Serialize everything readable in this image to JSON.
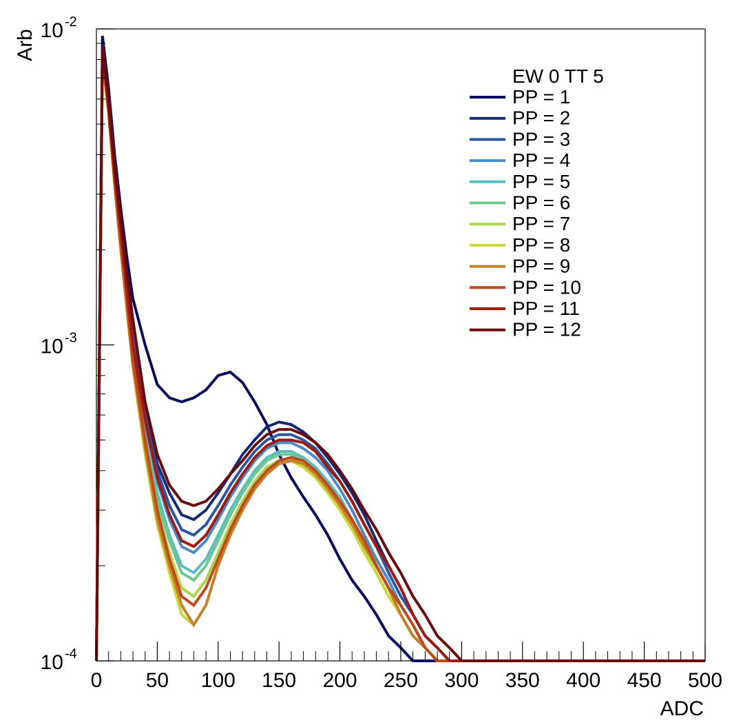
{
  "chart_data": {
    "type": "line",
    "title": "",
    "xlabel": "ADC",
    "ylabel": "Arb",
    "xlim": [
      0,
      500
    ],
    "ylim": [
      0.0001,
      0.01
    ],
    "yscale": "log",
    "grid": false,
    "legend_title": "EW 0 TT 5",
    "legend_position": "top-right",
    "x_ticks": [
      "0",
      "50",
      "100",
      "150",
      "200",
      "250",
      "300",
      "350",
      "400",
      "450",
      "500"
    ],
    "y_tick_base": [
      "10",
      "10",
      "10"
    ],
    "y_tick_exp": [
      "-4",
      "-3",
      "-2"
    ],
    "x": [
      0,
      5,
      10,
      15,
      20,
      25,
      30,
      40,
      50,
      60,
      70,
      80,
      90,
      100,
      110,
      120,
      130,
      140,
      150,
      160,
      170,
      180,
      190,
      200,
      210,
      220,
      230,
      240,
      250,
      260,
      270,
      280,
      290,
      300,
      310,
      320,
      330,
      340,
      350,
      400,
      450,
      500
    ],
    "series": [
      {
        "name": "PP = 1",
        "color": "#0a0a5e",
        "values": [
          0.0001,
          0.0095,
          0.0065,
          0.004,
          0.0027,
          0.0019,
          0.0014,
          0.001,
          0.00075,
          0.00068,
          0.00066,
          0.00068,
          0.00072,
          0.0008,
          0.00082,
          0.00076,
          0.00066,
          0.00056,
          0.00045,
          0.00038,
          0.00033,
          0.00029,
          0.00025,
          0.00021,
          0.00018,
          0.00016,
          0.00014,
          0.00012,
          0.00011,
          0.0001,
          0.0001,
          0.0001,
          0.0001,
          0.0001,
          0.0001,
          0.0001,
          0.0001,
          0.0001,
          0.0001,
          0.0001,
          0.0001,
          0.0001
        ]
      },
      {
        "name": "PP = 2",
        "color": "#142878",
        "values": [
          0.0001,
          0.009,
          0.0062,
          0.0038,
          0.0025,
          0.0017,
          0.0012,
          0.00065,
          0.00042,
          0.00034,
          0.00029,
          0.00028,
          0.0003,
          0.00034,
          0.00039,
          0.00045,
          0.0005,
          0.00055,
          0.00057,
          0.00056,
          0.00053,
          0.00049,
          0.00044,
          0.00039,
          0.00034,
          0.00029,
          0.00024,
          0.0002,
          0.00017,
          0.00014,
          0.00012,
          0.00011,
          0.0001,
          0.0001,
          0.0001,
          0.0001,
          0.0001,
          0.0001,
          0.0001,
          0.0001,
          0.0001,
          0.0001
        ]
      },
      {
        "name": "PP = 3",
        "color": "#2b56a8",
        "values": [
          0.0001,
          0.0088,
          0.006,
          0.0036,
          0.0024,
          0.0016,
          0.0011,
          0.0006,
          0.0004,
          0.00031,
          0.00026,
          0.00025,
          0.00027,
          0.00031,
          0.00036,
          0.00041,
          0.00046,
          0.0005,
          0.00052,
          0.00052,
          0.0005,
          0.00047,
          0.00042,
          0.00037,
          0.00032,
          0.00027,
          0.00023,
          0.00019,
          0.00016,
          0.00014,
          0.00012,
          0.00011,
          0.0001,
          0.0001,
          0.0001,
          0.0001,
          0.0001,
          0.0001,
          0.0001,
          0.0001,
          0.0001,
          0.0001
        ]
      },
      {
        "name": "PP = 4",
        "color": "#4a8ac8",
        "values": [
          0.0001,
          0.0086,
          0.0058,
          0.0035,
          0.0023,
          0.0015,
          0.001,
          0.00056,
          0.00037,
          0.00028,
          0.00023,
          0.00022,
          0.00024,
          0.00028,
          0.00033,
          0.00038,
          0.00043,
          0.00047,
          0.00049,
          0.00049,
          0.00047,
          0.00044,
          0.0004,
          0.00035,
          0.0003,
          0.00025,
          0.00021,
          0.00018,
          0.00015,
          0.00013,
          0.00011,
          0.0001,
          0.0001,
          0.0001,
          0.0001,
          0.0001,
          0.0001,
          0.0001,
          0.0001,
          0.0001,
          0.0001,
          0.0001
        ]
      },
      {
        "name": "PP = 5",
        "color": "#5bbcc4",
        "values": [
          0.0001,
          0.0085,
          0.0057,
          0.0034,
          0.0022,
          0.0014,
          0.00095,
          0.00052,
          0.00034,
          0.00025,
          0.0002,
          0.00019,
          0.00021,
          0.00025,
          0.0003,
          0.00035,
          0.0004,
          0.00044,
          0.00046,
          0.00046,
          0.00044,
          0.00041,
          0.00037,
          0.00033,
          0.00028,
          0.00024,
          0.0002,
          0.00017,
          0.00014,
          0.00012,
          0.00011,
          0.0001,
          0.0001,
          0.0001,
          0.0001,
          0.0001,
          0.0001,
          0.0001,
          0.0001,
          0.0001,
          0.0001,
          0.0001
        ]
      },
      {
        "name": "PP = 6",
        "color": "#6cc98a",
        "values": [
          0.0001,
          0.0084,
          0.0056,
          0.0033,
          0.0021,
          0.0014,
          0.0009,
          0.0005,
          0.00032,
          0.00024,
          0.00019,
          0.00018,
          0.0002,
          0.00024,
          0.00029,
          0.00034,
          0.00039,
          0.00043,
          0.00045,
          0.00045,
          0.00043,
          0.0004,
          0.00036,
          0.00032,
          0.00027,
          0.00023,
          0.0002,
          0.00017,
          0.00014,
          0.00012,
          0.00011,
          0.0001,
          0.0001,
          0.0001,
          0.0001,
          0.0001,
          0.0001,
          0.0001,
          0.0001,
          0.0001,
          0.0001,
          0.0001
        ]
      },
      {
        "name": "PP = 7",
        "color": "#a8d84a",
        "values": [
          0.0001,
          0.0083,
          0.0055,
          0.0033,
          0.0021,
          0.0013,
          0.00088,
          0.00048,
          0.0003,
          0.00022,
          0.00017,
          0.00016,
          0.00018,
          0.00022,
          0.00027,
          0.00032,
          0.00037,
          0.00041,
          0.00043,
          0.00044,
          0.00042,
          0.00039,
          0.00035,
          0.00031,
          0.00027,
          0.00023,
          0.00019,
          0.00016,
          0.00014,
          0.00012,
          0.00011,
          0.0001,
          0.0001,
          0.0001,
          0.0001,
          0.0001,
          0.0001,
          0.0001,
          0.0001,
          0.0001,
          0.0001,
          0.0001
        ]
      },
      {
        "name": "PP = 8",
        "color": "#ccd83a",
        "values": [
          0.0001,
          0.0082,
          0.0054,
          0.0032,
          0.002,
          0.0013,
          0.00085,
          0.00045,
          0.00027,
          0.00019,
          0.00014,
          0.00013,
          0.00015,
          0.0002,
          0.00025,
          0.0003,
          0.00035,
          0.00039,
          0.00042,
          0.00043,
          0.00041,
          0.00038,
          0.00034,
          0.0003,
          0.00026,
          0.00022,
          0.00019,
          0.00016,
          0.00014,
          0.00012,
          0.00011,
          0.0001,
          0.0001,
          0.0001,
          0.0001,
          0.0001,
          0.0001,
          0.0001,
          0.0001,
          0.0001,
          0.0001,
          0.0001
        ]
      },
      {
        "name": "PP = 9",
        "color": "#c8802a",
        "values": [
          0.0001,
          0.0082,
          0.0054,
          0.0032,
          0.002,
          0.0013,
          0.00086,
          0.00047,
          0.00028,
          0.0002,
          0.00015,
          0.00013,
          0.00015,
          0.0002,
          0.00025,
          0.0003,
          0.00035,
          0.00039,
          0.00042,
          0.00043,
          0.00042,
          0.00039,
          0.00035,
          0.00031,
          0.00027,
          0.00023,
          0.0002,
          0.00017,
          0.00014,
          0.00012,
          0.00011,
          0.0001,
          0.0001,
          0.0001,
          0.0001,
          0.0001,
          0.0001,
          0.0001,
          0.0001,
          0.0001,
          0.0001,
          0.0001
        ]
      },
      {
        "name": "PP = 10",
        "color": "#c04a1a",
        "values": [
          0.0001,
          0.0083,
          0.0055,
          0.0033,
          0.0021,
          0.0014,
          0.0009,
          0.0005,
          0.0003,
          0.00021,
          0.00016,
          0.00015,
          0.00017,
          0.00021,
          0.00026,
          0.00031,
          0.00036,
          0.0004,
          0.00043,
          0.00044,
          0.00043,
          0.0004,
          0.00036,
          0.00032,
          0.00028,
          0.00024,
          0.0002,
          0.00017,
          0.00015,
          0.00013,
          0.00011,
          0.0001,
          0.0001,
          0.0001,
          0.0001,
          0.0001,
          0.0001,
          0.0001,
          0.0001,
          0.0001,
          0.0001,
          0.0001
        ]
      },
      {
        "name": "PP = 11",
        "color": "#a01a10",
        "values": [
          0.0001,
          0.0085,
          0.0057,
          0.0035,
          0.0023,
          0.0015,
          0.001,
          0.00058,
          0.00038,
          0.00029,
          0.00024,
          0.00023,
          0.00025,
          0.00029,
          0.00034,
          0.00039,
          0.00044,
          0.00048,
          0.0005,
          0.0005,
          0.00049,
          0.00046,
          0.00041,
          0.00037,
          0.00032,
          0.00027,
          0.00023,
          0.0002,
          0.00017,
          0.00014,
          0.00012,
          0.00011,
          0.0001,
          0.0001,
          0.0001,
          0.0001,
          0.0001,
          0.0001,
          0.0001,
          0.0001,
          0.0001,
          0.0001
        ]
      },
      {
        "name": "PP = 12",
        "color": "#6a0a0a",
        "values": [
          0.0001,
          0.0088,
          0.006,
          0.0037,
          0.0025,
          0.0017,
          0.0012,
          0.00066,
          0.00045,
          0.00036,
          0.00032,
          0.00031,
          0.00032,
          0.00035,
          0.00039,
          0.00043,
          0.00048,
          0.00052,
          0.00054,
          0.00054,
          0.00052,
          0.00049,
          0.00045,
          0.0004,
          0.00035,
          0.0003,
          0.00026,
          0.00022,
          0.00019,
          0.00016,
          0.00014,
          0.00012,
          0.00011,
          0.0001,
          0.0001,
          0.0001,
          0.0001,
          0.0001,
          0.0001,
          0.0001,
          0.0001,
          0.0001
        ]
      }
    ]
  }
}
